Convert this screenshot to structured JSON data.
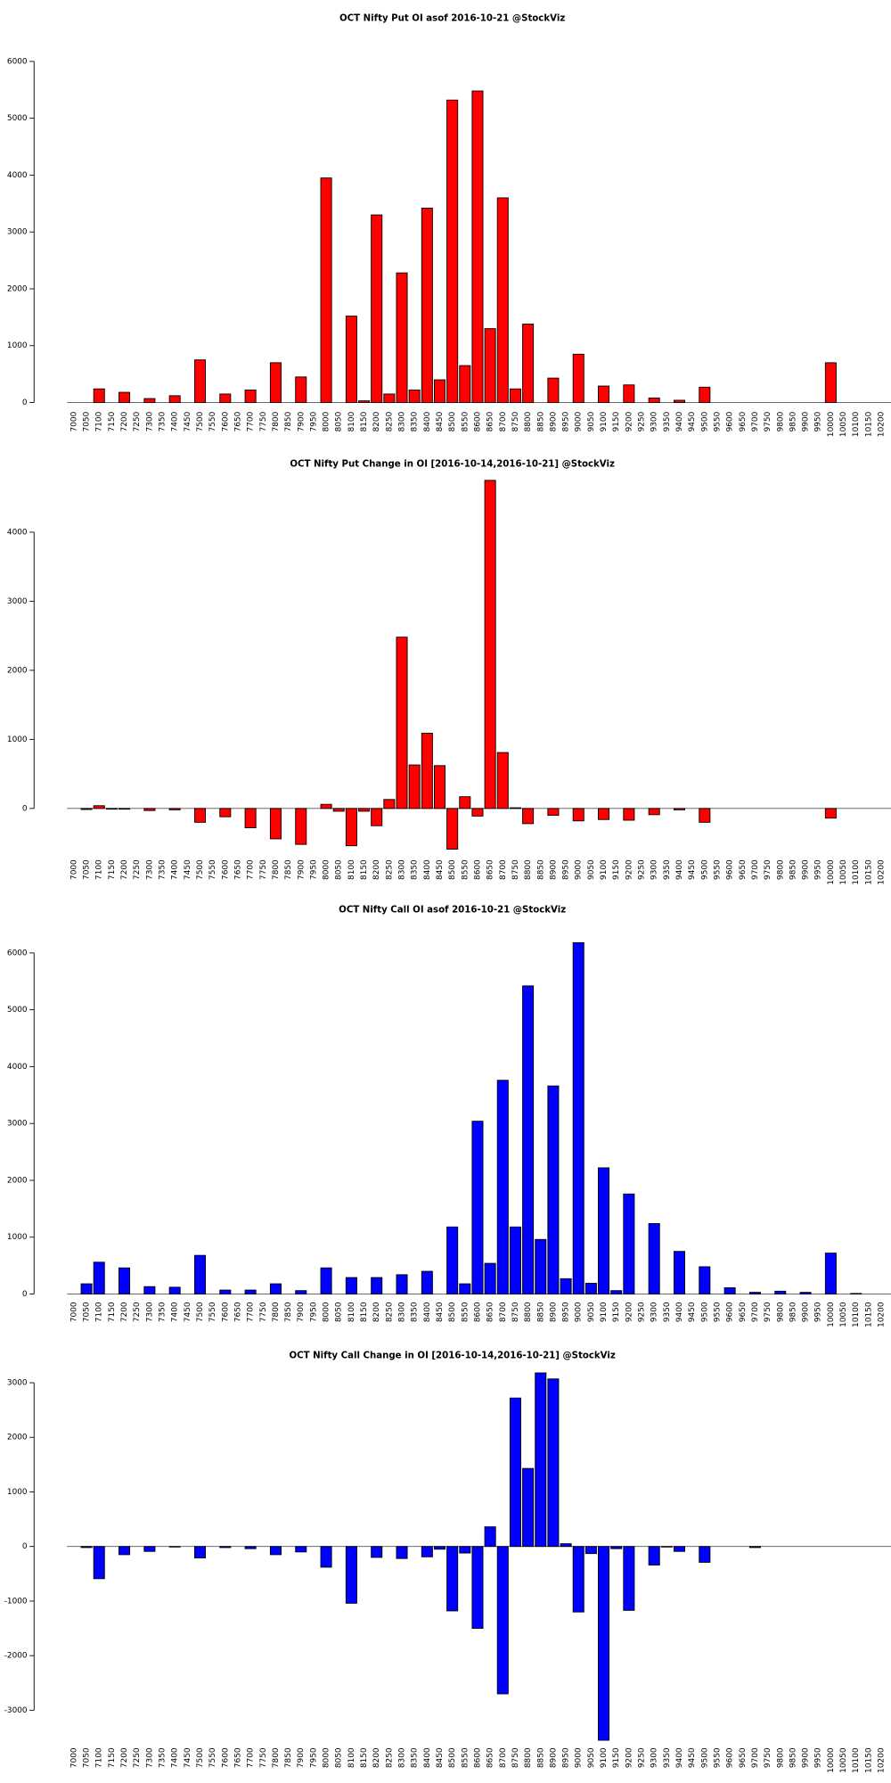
{
  "chart_data": [
    {
      "type": "bar",
      "title": "OCT Nifty Put OI asof 2016-10-21 @StockViz",
      "color": "#ff0000",
      "categories": [
        "7000",
        "7050",
        "7100",
        "7150",
        "7200",
        "7250",
        "7300",
        "7350",
        "7400",
        "7450",
        "7500",
        "7550",
        "7600",
        "7650",
        "7700",
        "7750",
        "7800",
        "7850",
        "7900",
        "7950",
        "8000",
        "8050",
        "8100",
        "8150",
        "8200",
        "8250",
        "8300",
        "8350",
        "8400",
        "8450",
        "8500",
        "8550",
        "8600",
        "8650",
        "8700",
        "8750",
        "8800",
        "8850",
        "8900",
        "8950",
        "9000",
        "9050",
        "9100",
        "9150",
        "9200",
        "9250",
        "9300",
        "9350",
        "9400",
        "9450",
        "9500",
        "9550",
        "9600",
        "9650",
        "9700",
        "9750",
        "9800",
        "9850",
        "9900",
        "9950",
        "10000",
        "10050",
        "10100",
        "10150",
        "10200"
      ],
      "values": [
        0,
        0,
        240,
        0,
        180,
        0,
        70,
        0,
        120,
        0,
        750,
        0,
        150,
        0,
        220,
        0,
        700,
        0,
        450,
        0,
        3950,
        0,
        1520,
        30,
        3300,
        150,
        2280,
        220,
        3420,
        400,
        5320,
        650,
        5480,
        1300,
        3600,
        240,
        1380,
        0,
        430,
        0,
        850,
        0,
        290,
        0,
        310,
        0,
        80,
        0,
        40,
        0,
        270,
        0,
        0,
        0,
        0,
        0,
        0,
        0,
        0,
        0,
        700,
        0,
        0,
        0,
        0
      ],
      "ylim": [
        0,
        6000
      ],
      "yticks": [
        0,
        1000,
        2000,
        3000,
        4000,
        5000,
        6000
      ]
    },
    {
      "type": "bar",
      "title": "OCT Nifty Put Change in OI [2016-10-14,2016-10-21] @StockViz",
      "color": "#ff0000",
      "categories": [
        "7000",
        "7050",
        "7100",
        "7150",
        "7200",
        "7250",
        "7300",
        "7350",
        "7400",
        "7450",
        "7500",
        "7550",
        "7600",
        "7650",
        "7700",
        "7750",
        "7800",
        "7850",
        "7900",
        "7950",
        "8000",
        "8050",
        "8100",
        "8150",
        "8200",
        "8250",
        "8300",
        "8350",
        "8400",
        "8450",
        "8500",
        "8550",
        "8600",
        "8650",
        "8700",
        "8750",
        "8800",
        "8850",
        "8900",
        "8950",
        "9000",
        "9050",
        "9100",
        "9150",
        "9200",
        "9250",
        "9300",
        "9350",
        "9400",
        "9450",
        "9500",
        "9550",
        "9600",
        "9650",
        "9700",
        "9750",
        "9800",
        "9850",
        "9900",
        "9950",
        "10000",
        "10050",
        "10100",
        "10150",
        "10200"
      ],
      "values": [
        0,
        -15,
        40,
        -10,
        -10,
        0,
        -30,
        0,
        -20,
        0,
        -200,
        0,
        -120,
        0,
        -280,
        0,
        -440,
        0,
        -520,
        0,
        60,
        -40,
        -540,
        -40,
        -250,
        130,
        2480,
        630,
        1090,
        620,
        -590,
        170,
        -110,
        4750,
        810,
        10,
        -220,
        0,
        -100,
        0,
        -180,
        0,
        -160,
        0,
        -170,
        0,
        -90,
        0,
        -20,
        0,
        -200,
        0,
        0,
        0,
        0,
        0,
        0,
        0,
        0,
        0,
        -140,
        0,
        0,
        0,
        0
      ],
      "ylim": [
        -700,
        4800
      ],
      "yticks": [
        0,
        1000,
        2000,
        3000,
        4000
      ]
    },
    {
      "type": "bar",
      "title": "OCT Nifty Call OI asof 2016-10-21 @StockViz",
      "color": "#0000ff",
      "categories": [
        "7000",
        "7050",
        "7100",
        "7150",
        "7200",
        "7250",
        "7300",
        "7350",
        "7400",
        "7450",
        "7500",
        "7550",
        "7600",
        "7650",
        "7700",
        "7750",
        "7800",
        "7850",
        "7900",
        "7950",
        "8000",
        "8050",
        "8100",
        "8150",
        "8200",
        "8250",
        "8300",
        "8350",
        "8400",
        "8450",
        "8500",
        "8550",
        "8600",
        "8650",
        "8700",
        "8750",
        "8800",
        "8850",
        "8900",
        "8950",
        "9000",
        "9050",
        "9100",
        "9150",
        "9200",
        "9250",
        "9300",
        "9350",
        "9400",
        "9450",
        "9500",
        "9550",
        "9600",
        "9650",
        "9700",
        "9750",
        "9800",
        "9850",
        "9900",
        "9950",
        "10000",
        "10050",
        "10100",
        "10150",
        "10200"
      ],
      "values": [
        0,
        180,
        560,
        0,
        460,
        0,
        130,
        0,
        120,
        0,
        680,
        0,
        70,
        0,
        70,
        0,
        180,
        0,
        60,
        0,
        460,
        0,
        290,
        0,
        290,
        0,
        340,
        0,
        400,
        0,
        1180,
        180,
        3040,
        540,
        3760,
        1180,
        5420,
        960,
        3660,
        270,
        6180,
        190,
        2220,
        60,
        1760,
        0,
        1240,
        0,
        750,
        0,
        480,
        0,
        110,
        0,
        30,
        0,
        50,
        0,
        30,
        0,
        720,
        0,
        10,
        0,
        0
      ],
      "ylim": [
        0,
        6200
      ],
      "yticks": [
        0,
        1000,
        2000,
        3000,
        4000,
        5000,
        6000
      ]
    },
    {
      "type": "bar",
      "title": "OCT Nifty Call Change in OI [2016-10-14,2016-10-21] @StockViz",
      "color": "#0000ff",
      "categories": [
        "7000",
        "7050",
        "7100",
        "7150",
        "7200",
        "7250",
        "7300",
        "7350",
        "7400",
        "7450",
        "7500",
        "7550",
        "7600",
        "7650",
        "7700",
        "7750",
        "7800",
        "7850",
        "7900",
        "7950",
        "8000",
        "8050",
        "8100",
        "8150",
        "8200",
        "8250",
        "8300",
        "8350",
        "8400",
        "8450",
        "8500",
        "8550",
        "8600",
        "8650",
        "8700",
        "8750",
        "8800",
        "8850",
        "8900",
        "8950",
        "9000",
        "9050",
        "9100",
        "9150",
        "9200",
        "9250",
        "9300",
        "9350",
        "9400",
        "9450",
        "9500",
        "9550",
        "9600",
        "9650",
        "9700",
        "9750",
        "9800",
        "9850",
        "9900",
        "9950",
        "10000",
        "10050",
        "10100",
        "10150",
        "10200"
      ],
      "values": [
        0,
        -20,
        -590,
        0,
        -150,
        0,
        -90,
        0,
        -10,
        0,
        -210,
        0,
        -20,
        0,
        -40,
        0,
        -150,
        0,
        -100,
        0,
        -380,
        0,
        -1040,
        0,
        -200,
        0,
        -220,
        0,
        -190,
        -50,
        -1180,
        -120,
        -1500,
        360,
        -2700,
        2720,
        1430,
        3180,
        3070,
        50,
        -1200,
        -130,
        -3550,
        -40,
        -1170,
        0,
        -340,
        -10,
        -90,
        0,
        -290,
        0,
        0,
        0,
        -20,
        0,
        0,
        0,
        0,
        0,
        0,
        0,
        0,
        0,
        0
      ],
      "ylim": [
        -3600,
        3200
      ],
      "yticks": [
        -3000,
        -2000,
        -1000,
        0,
        1000,
        2000,
        3000
      ]
    }
  ]
}
